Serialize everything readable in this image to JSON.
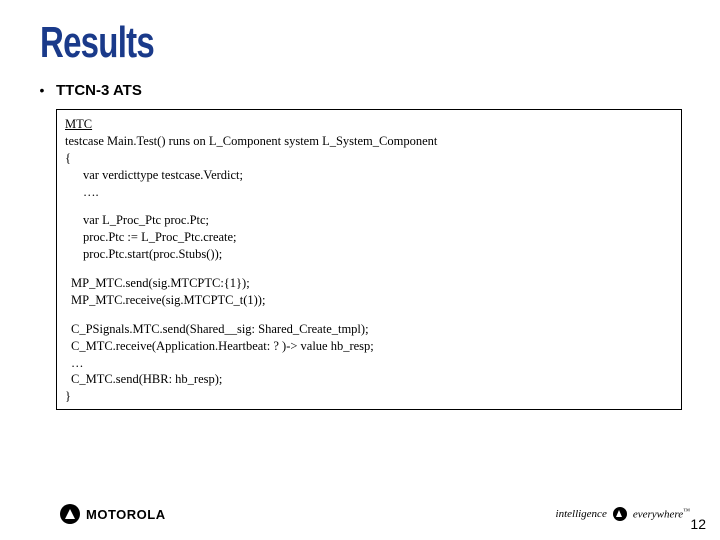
{
  "title": "Results",
  "bullet": {
    "marker": "•",
    "text": "TTCN-3 ATS"
  },
  "code": {
    "l1": "MTC",
    "l2": "testcase Main.Test() runs on L_Component system L_System_Component",
    "l3": "{",
    "l4": "var verdicttype testcase.Verdict;",
    "l5": "….",
    "l6": "var L_Proc_Ptc proc.Ptc;",
    "l7": "proc.Ptc := L_Proc_Ptc.create;",
    "l8": "proc.Ptc.start(proc.Stubs());",
    "l9": "MP_MTC.send(sig.MTCPTC:{1});",
    "l10": "MP_MTC.receive(sig.MTCPTC_t(1));",
    "l11": "C_PSignals.MTC.send(Shared__sig: Shared_Create_tmpl);",
    "l12": "C_MTC.receive(Application.Heartbeat: ? )-> value hb_resp;",
    "l13": "…",
    "l14": "C_MTC.send(HBR: hb_resp);",
    "l15": "}"
  },
  "footer": {
    "brand": "MOTOROLA",
    "intelligence": "intelligence",
    "everywhere": "everywhere",
    "tm": "™"
  },
  "page_number": "12",
  "colors": {
    "title": "#1a3a8a",
    "background": "#ffffff",
    "border": "#000000",
    "text": "#000000"
  }
}
